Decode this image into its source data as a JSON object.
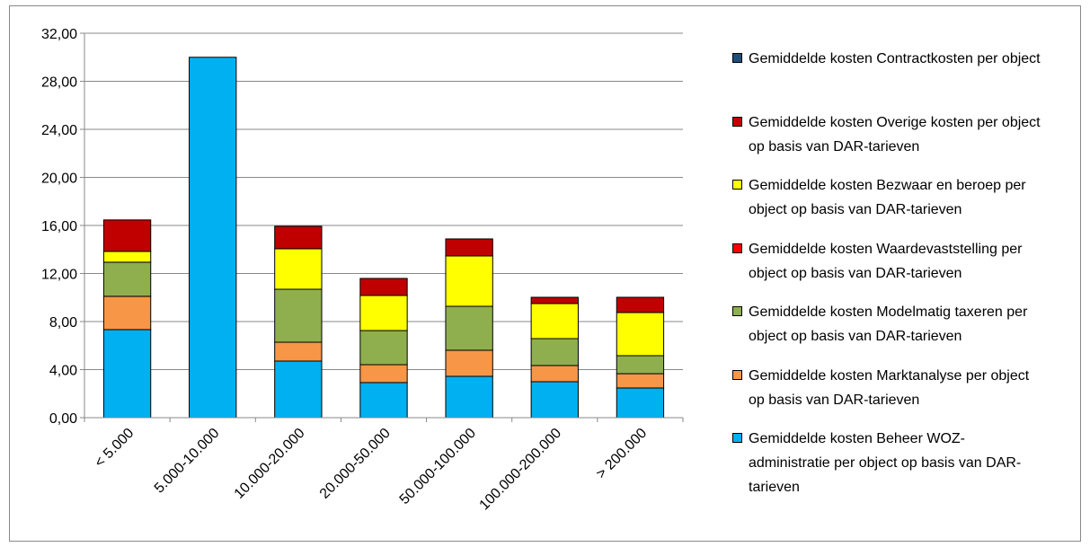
{
  "chart_data": {
    "type": "bar",
    "stacked": true,
    "categories": [
      "< 5.000",
      "5.000-10.000",
      "10.000-20.000",
      "20.000-50.000",
      "50.000-100.000",
      "100.000-200.000",
      "> 200.000"
    ],
    "series": [
      {
        "name": "Gemiddelde kosten Beheer WOZ-administratie per object op basis van DAR-tarieven",
        "color": "#00b0f0",
        "values": [
          7.33,
          30.0,
          4.71,
          2.92,
          3.44,
          2.99,
          2.47
        ]
      },
      {
        "name": "Gemiddelde kosten Marktanalyse per object op basis van DAR-tarieven",
        "color": "#f79646",
        "values": [
          2.77,
          0,
          1.57,
          1.49,
          2.17,
          1.35,
          1.19
        ]
      },
      {
        "name": "Gemiddelde kosten Modelmatig taxeren per object op basis van DAR-tarieven",
        "color": "#8faf4f",
        "values": [
          2.84,
          0,
          4.41,
          2.84,
          3.66,
          2.24,
          1.5
        ]
      },
      {
        "name": "Gemiddelde kosten Waardevaststelling per object op basis van DAR-tarieven",
        "color": "#ff0000",
        "values": [
          0,
          0,
          0,
          0,
          0,
          0,
          0
        ]
      },
      {
        "name": "Gemiddelde kosten Bezwaar en beroep per object op basis van DAR-tarieven",
        "color": "#ffff00",
        "values": [
          0.9,
          0,
          3.37,
          2.92,
          4.19,
          2.92,
          3.59
        ]
      },
      {
        "name": "Gemiddelde kosten Overige kosten per object op basis van DAR-tarieven",
        "color": "#c00000",
        "values": [
          2.62,
          0,
          1.87,
          1.42,
          1.42,
          0.52,
          1.27
        ]
      },
      {
        "name": "Gemiddelde kosten Contractkosten per object",
        "color": "#1f4e79",
        "values": [
          0,
          0,
          0,
          0,
          0,
          0,
          0
        ]
      }
    ],
    "ylim": [
      0,
      32
    ],
    "yticks": [
      {
        "value": 0,
        "label": "0,00"
      },
      {
        "value": 4,
        "label": "4,00"
      },
      {
        "value": 8,
        "label": "8,00"
      },
      {
        "value": 12,
        "label": "12,00"
      },
      {
        "value": 16,
        "label": "16,00"
      },
      {
        "value": 20,
        "label": "20,00"
      },
      {
        "value": 24,
        "label": "24,00"
      },
      {
        "value": 28,
        "label": "28,00"
      },
      {
        "value": 32,
        "label": "32,00"
      }
    ],
    "grid": true,
    "legend": "right"
  }
}
